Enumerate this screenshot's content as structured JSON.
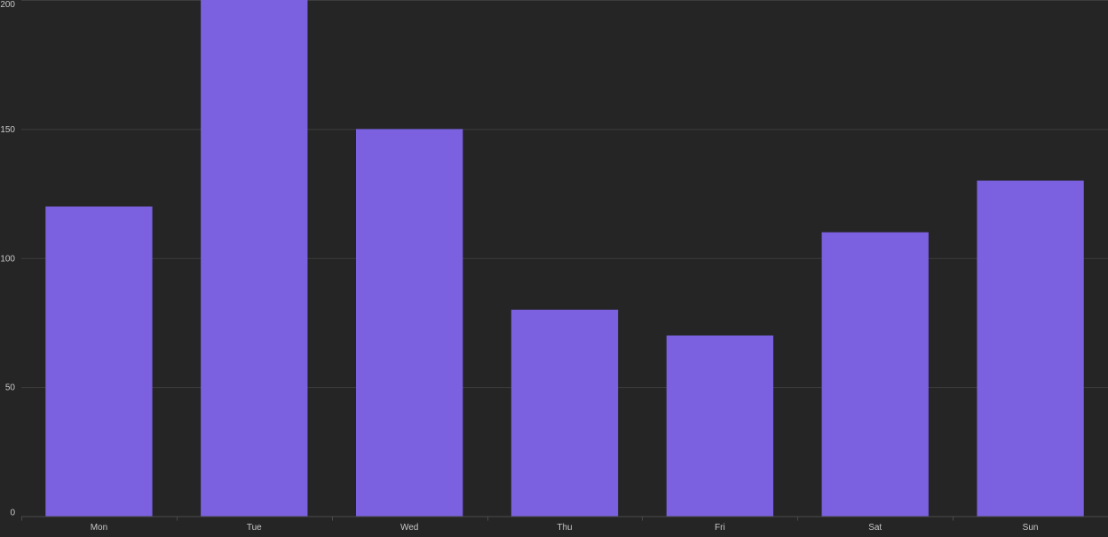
{
  "colors": {
    "background": "#252525",
    "bar": "#7b61df",
    "grid": "#3d3d3d",
    "axis": "#4a4a4a",
    "text": "#c8c8c8"
  },
  "chart_data": {
    "type": "bar",
    "title": "",
    "xlabel": "",
    "ylabel": "",
    "categories": [
      "Mon",
      "Tue",
      "Wed",
      "Thu",
      "Fri",
      "Sat",
      "Sun"
    ],
    "values": [
      120,
      200,
      150,
      80,
      70,
      110,
      130
    ],
    "ylim": [
      0,
      200
    ],
    "yticks": [
      0,
      50,
      100,
      150,
      200
    ],
    "grid": true,
    "legend": "none"
  }
}
